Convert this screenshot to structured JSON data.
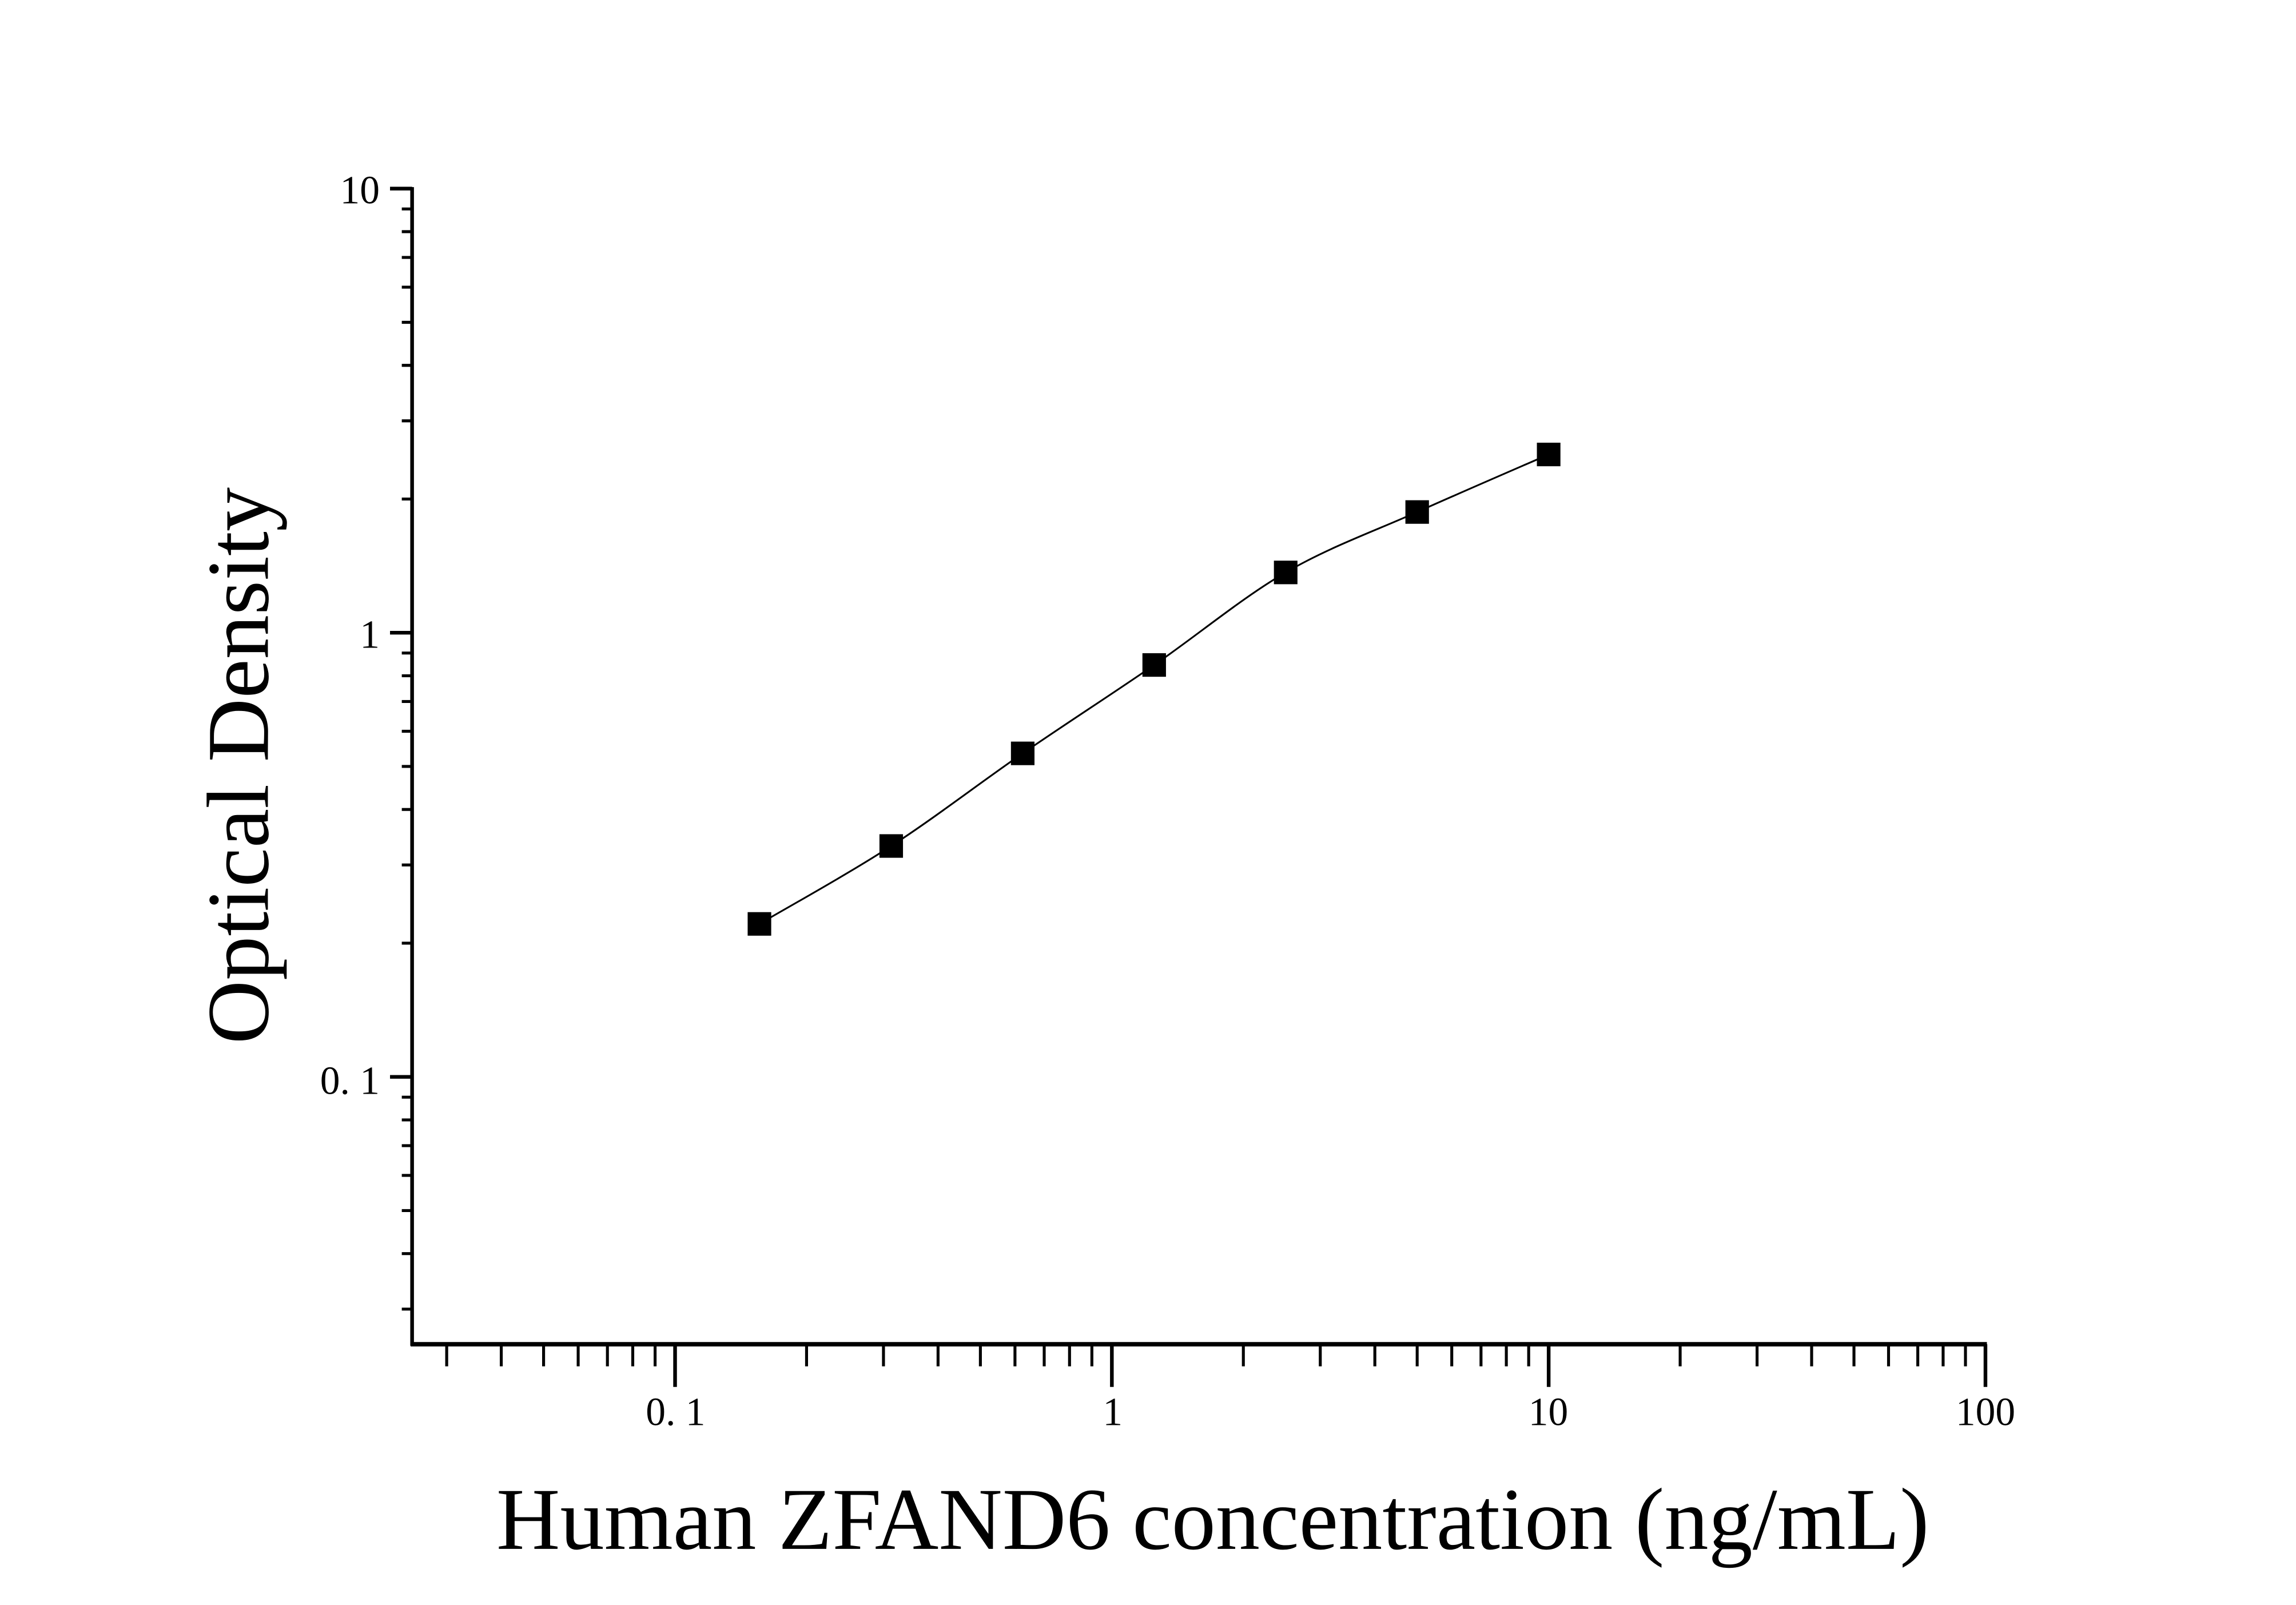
{
  "chart_data": {
    "type": "scatter",
    "title": "",
    "xlabel": "Human ZFAND6 concentration (ng/mL)",
    "ylabel": "Optical Density",
    "x_scale": "log",
    "y_scale": "log",
    "xlim": [
      0.025,
      100
    ],
    "ylim": [
      0.025,
      10
    ],
    "x_ticks": [
      0.1,
      1,
      10,
      100
    ],
    "x_tick_labels": [
      "0. 1",
      "1",
      "10",
      "100"
    ],
    "y_ticks": [
      0.1,
      1,
      10
    ],
    "y_tick_labels": [
      "0. 1",
      "1",
      "10"
    ],
    "grid": false,
    "legend": "none",
    "marker": "square",
    "fit_curve": true,
    "color": "#000000",
    "series": [
      {
        "x": [
          0.156,
          0.3125,
          0.625,
          1.25,
          2.5,
          5,
          10
        ],
        "y": [
          0.221,
          0.331,
          0.535,
          0.846,
          1.367,
          1.87,
          2.52
        ]
      }
    ]
  }
}
